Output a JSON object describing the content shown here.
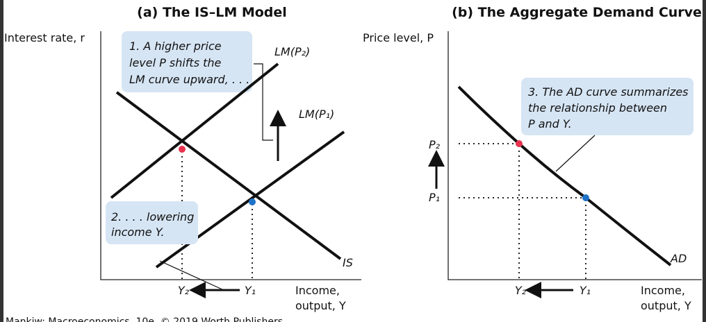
{
  "panel_a": {
    "title": "(a) The IS–LM Model",
    "y_axis_label": "Interest rate, r",
    "x_axis_label": [
      "Income,",
      "output, Y"
    ],
    "curves": {
      "lm_p2": "LM(P₂)",
      "lm_p1": "LM(P₁)",
      "is": "IS"
    },
    "x_marks": {
      "y2": "Y₂",
      "y1": "Y₁"
    },
    "callout_1": [
      "1. A higher price",
      "level P shifts the",
      "LM curve upward, . . ."
    ],
    "callout_2": [
      "2. . . . lowering",
      "income Y."
    ]
  },
  "panel_b": {
    "title": "(b) The Aggregate Demand Curve",
    "y_axis_label": "Price level, P",
    "x_axis_label": [
      "Income,",
      "output, Y"
    ],
    "curves": {
      "ad": "AD"
    },
    "y_marks": {
      "p2": "P₂",
      "p1": "P₁"
    },
    "x_marks": {
      "y2": "Y₂",
      "y1": "Y₁"
    },
    "callout_3": [
      "3. The AD curve summarizes",
      "the relationship between",
      "P and Y."
    ]
  },
  "footer": "Mankiw: Macroeconomics, 10e, © 2019 Worth Publishers"
}
